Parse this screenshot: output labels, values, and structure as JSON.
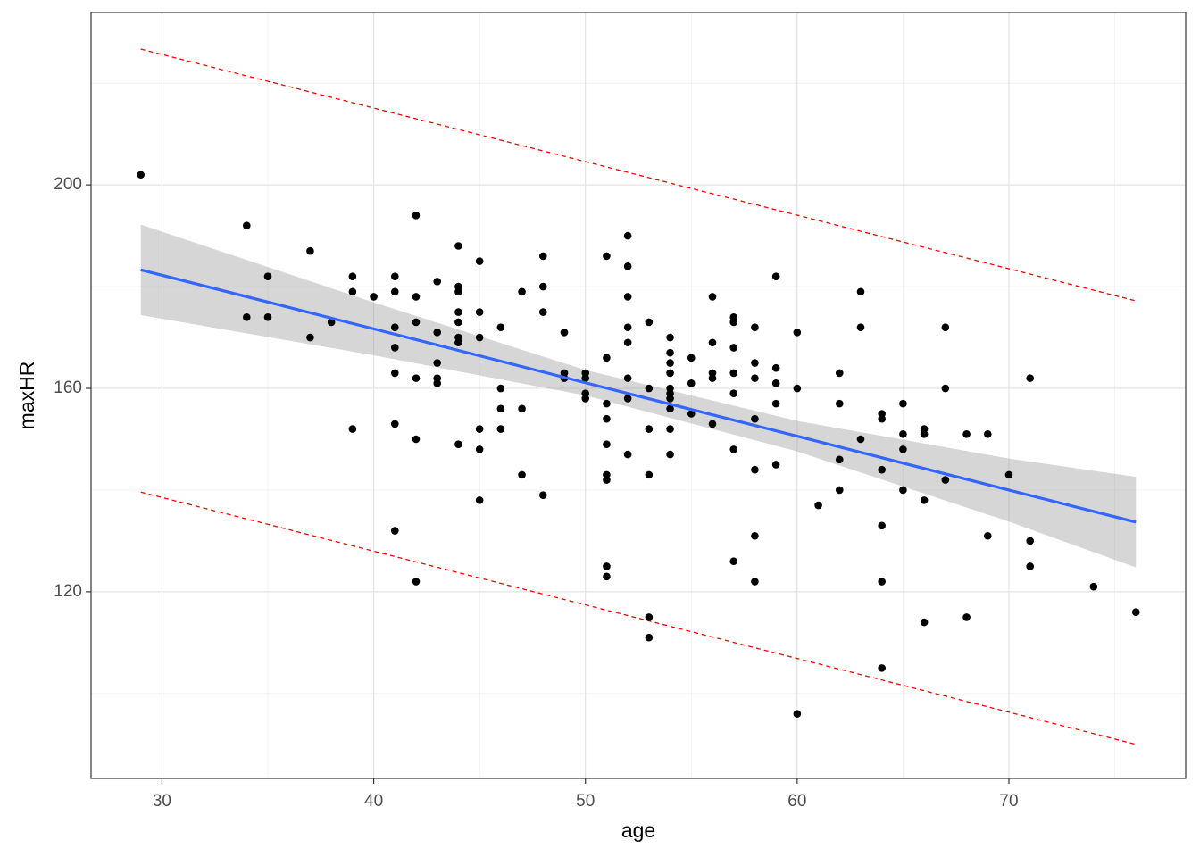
{
  "chart_data": {
    "type": "scatter",
    "x_label": "age",
    "y_label": "maxHR",
    "xlim": [
      26.65,
      78.35
    ],
    "ylim": [
      83.3,
      233.9
    ],
    "xticks": [
      30,
      40,
      50,
      60,
      70
    ],
    "yticks": [
      120,
      160,
      200
    ],
    "x_minor_grid": [
      35,
      45,
      55,
      65,
      75
    ],
    "y_minor_grid": [
      100,
      140,
      180,
      220
    ],
    "grid": true,
    "points": {
      "color": "#000000",
      "x": [
        29,
        34,
        34,
        35,
        35,
        37,
        37,
        38,
        39,
        39,
        39,
        40,
        41,
        41,
        41,
        41,
        41,
        41,
        41,
        42,
        42,
        42,
        42,
        42,
        42,
        43,
        43,
        43,
        43,
        43,
        44,
        44,
        44,
        44,
        44,
        44,
        44,
        44,
        45,
        45,
        45,
        45,
        45,
        45,
        46,
        46,
        46,
        46,
        47,
        47,
        47,
        48,
        48,
        48,
        48,
        49,
        49,
        49,
        50,
        50,
        50,
        50,
        51,
        51,
        51,
        51,
        51,
        51,
        51,
        51,
        51,
        52,
        52,
        52,
        52,
        52,
        52,
        52,
        52,
        53,
        53,
        53,
        53,
        53,
        53,
        54,
        54,
        54,
        54,
        54,
        54,
        54,
        54,
        54,
        54,
        55,
        55,
        55,
        56,
        56,
        56,
        56,
        56,
        57,
        57,
        57,
        57,
        57,
        57,
        57,
        58,
        58,
        58,
        58,
        58,
        58,
        58,
        59,
        59,
        59,
        59,
        59,
        60,
        60,
        60,
        61,
        62,
        62,
        62,
        62,
        63,
        63,
        63,
        64,
        64,
        64,
        64,
        64,
        64,
        65,
        65,
        65,
        65,
        66,
        66,
        66,
        66,
        67,
        67,
        67,
        68,
        68,
        69,
        69,
        70,
        71,
        71,
        71,
        74,
        76
      ],
      "y": [
        202,
        192,
        174,
        182,
        174,
        187,
        170,
        173,
        182,
        179,
        152,
        178,
        182,
        179,
        172,
        168,
        163,
        153,
        132,
        194,
        178,
        173,
        162,
        150,
        122,
        181,
        171,
        165,
        162,
        161,
        188,
        180,
        179,
        175,
        173,
        170,
        169,
        149,
        185,
        175,
        170,
        152,
        148,
        138,
        172,
        160,
        156,
        152,
        179,
        156,
        143,
        186,
        180,
        175,
        139,
        171,
        163,
        162,
        163,
        162,
        159,
        158,
        186,
        166,
        157,
        154,
        149,
        143,
        142,
        125,
        123,
        190,
        184,
        178,
        172,
        169,
        162,
        158,
        147,
        173,
        160,
        152,
        143,
        115,
        111,
        170,
        167,
        165,
        163,
        160,
        159,
        158,
        156,
        152,
        147,
        166,
        161,
        155,
        178,
        169,
        163,
        162,
        153,
        174,
        173,
        168,
        163,
        159,
        148,
        126,
        172,
        165,
        162,
        154,
        144,
        131,
        122,
        182,
        164,
        161,
        157,
        145,
        171,
        160,
        96,
        137,
        163,
        157,
        146,
        140,
        179,
        172,
        150,
        155,
        154,
        144,
        133,
        122,
        105,
        157,
        151,
        148,
        140,
        152,
        151,
        138,
        114,
        172,
        160,
        142,
        151,
        115,
        151,
        131,
        143,
        162,
        130,
        125,
        121,
        116
      ]
    },
    "fit": {
      "color": "#3366FF",
      "band_color": "#999999",
      "x": [
        29,
        40,
        50,
        60,
        70,
        76
      ],
      "values": [
        183.3,
        171.7,
        161.1,
        150.6,
        140.0,
        133.7
      ],
      "lower": [
        174.4,
        166.5,
        158.6,
        147.6,
        133.8,
        124.8
      ],
      "upper": [
        192.2,
        176.9,
        163.6,
        153.6,
        146.2,
        142.6
      ]
    },
    "prediction": {
      "color": "#FF0000",
      "x": [
        29,
        76
      ],
      "lower": [
        139.6,
        90.0
      ],
      "upper": [
        226.7,
        177.2
      ]
    }
  }
}
